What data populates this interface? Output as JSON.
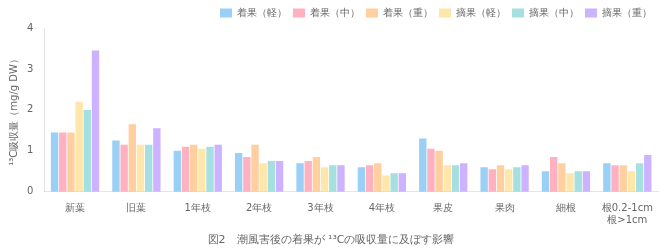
{
  "chart_data": {
    "type": "bar",
    "title": "図2　潮風害後の着果が ¹³Cの吸収量に及ぼす影響",
    "y_label": "¹³C吸収量（mg/g DW）",
    "categories": [
      "新葉",
      "旧葉",
      "1年枝",
      "2年枝",
      "3年枝",
      "4年枝",
      "果皮",
      "果肉",
      "細根",
      "根0.2-1cm\n根>1cm"
    ],
    "series": [
      {
        "name": "着果（軽）",
        "values": [
          1.45,
          1.25,
          1.0,
          0.95,
          0.7,
          0.6,
          1.3,
          0.6,
          0.5,
          0.7
        ]
      },
      {
        "name": "着果（中）",
        "values": [
          1.45,
          1.15,
          1.1,
          0.85,
          0.75,
          0.65,
          1.05,
          0.55,
          0.85,
          0.65
        ]
      },
      {
        "name": "着果（重）",
        "values": [
          1.45,
          1.65,
          1.15,
          1.15,
          0.85,
          0.7,
          1.0,
          0.65,
          0.7,
          0.65
        ]
      },
      {
        "name": "摘果（軽）",
        "values": [
          2.2,
          1.15,
          1.05,
          0.7,
          0.6,
          0.4,
          0.65,
          0.55,
          0.45,
          0.5
        ]
      },
      {
        "name": "摘果（中）",
        "values": [
          2.0,
          1.15,
          1.1,
          0.75,
          0.65,
          0.45,
          0.65,
          0.6,
          0.5,
          0.7
        ]
      },
      {
        "name": "摘果（重）",
        "values": [
          3.45,
          1.55,
          1.15,
          0.75,
          0.65,
          0.45,
          0.7,
          0.65,
          0.5,
          0.9
        ]
      }
    ],
    "ylim": [
      0,
      4
    ],
    "yticks": [
      0,
      1,
      2,
      3,
      4
    ],
    "grid": false,
    "legend": "upper right"
  }
}
